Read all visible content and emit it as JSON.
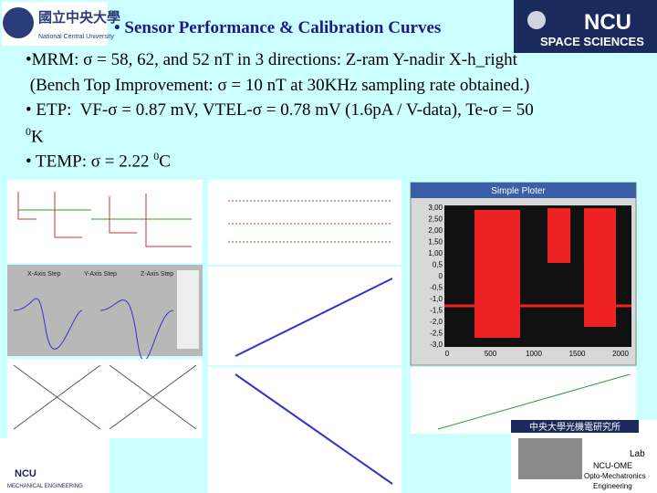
{
  "header": {
    "title": "• Sensor Performance & Calibration Curves",
    "left_logo": {
      "chinese": "國立中央大學",
      "english": "National Central University"
    },
    "right_logo": {
      "name": "NCU",
      "subtitle": "SPACE SCIENCES"
    }
  },
  "bullets": [
    [
      "•MRM: σ = 58, 62, and 52 nT in 3 directions: Z-ram Y-nadir X-h_right"
    ],
    [
      " (Bench Top Improvement: σ = 10 nT at 30KHz sampling rate obtained.)"
    ],
    [
      "• ETP:  VF-σ = 0.87 mV, VTEL-σ = 0.78 mV (1.6pA / V-data), Te-σ = 50"
    ],
    [
      {
        "sup": "0"
      },
      "K"
    ],
    [
      "• TEMP: σ = 2.22 ",
      {
        "sup": "0"
      },
      "C"
    ]
  ],
  "plotter": {
    "window_title": "Simple Ploter",
    "yticks": [
      "3,00",
      "2,50",
      "2,00",
      "1,50",
      "1,00",
      "0,5",
      "0",
      "-0,5",
      "-1,0",
      "-1,5",
      "-2,0",
      "-2,5",
      "-3,0"
    ],
    "xticks": [
      "0",
      "500",
      "1000",
      "1500",
      "2000"
    ]
  },
  "legend_panel": {
    "labels": [
      "X-Axis Step",
      "Y-Axis Step",
      "Z-Axis Step"
    ]
  },
  "bottom_left_logo": {
    "text": "NCU",
    "subtitle": "MECHANICAL ENGINEERING"
  },
  "bottom_right_logo": {
    "chinese": "中央大學光機電研究所",
    "lab": "Lab",
    "name": "NCU-OME",
    "line1": "Opto-Mechatronics",
    "line2": "Engineering"
  }
}
